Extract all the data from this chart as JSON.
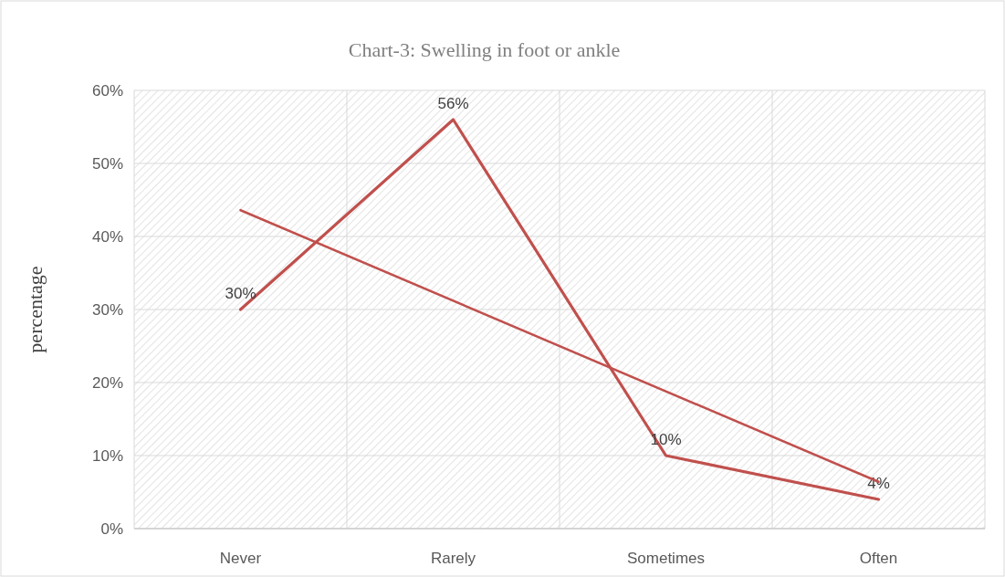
{
  "chart_data": {
    "type": "line",
    "title": "Chart-3: Swelling in foot or ankle",
    "ylabel": "percentage",
    "categories": [
      "Never",
      "Rarely",
      "Sometimes",
      "Often"
    ],
    "series": [
      {
        "color": "#c0504d",
        "values": [
          30,
          56,
          10,
          4
        ],
        "value_labels": [
          "30%",
          "56%",
          "10%",
          "4%"
        ]
      },
      {
        "type": "line",
        "color": "#c0504d",
        "x": [
          "Never",
          "Often"
        ],
        "values": [
          43.6,
          6.4
        ]
      }
    ],
    "ylim": [
      0,
      60
    ],
    "yticks": [
      {
        "value": 0,
        "label": "0%"
      },
      {
        "value": 10,
        "label": "10%"
      },
      {
        "value": 20,
        "label": "20%"
      },
      {
        "value": 30,
        "label": "30%"
      },
      {
        "value": 40,
        "label": "40%"
      },
      {
        "value": 50,
        "label": "50%"
      },
      {
        "value": 60,
        "label": "60%"
      }
    ],
    "grid": true,
    "marker": "none",
    "line_style": "solid"
  }
}
